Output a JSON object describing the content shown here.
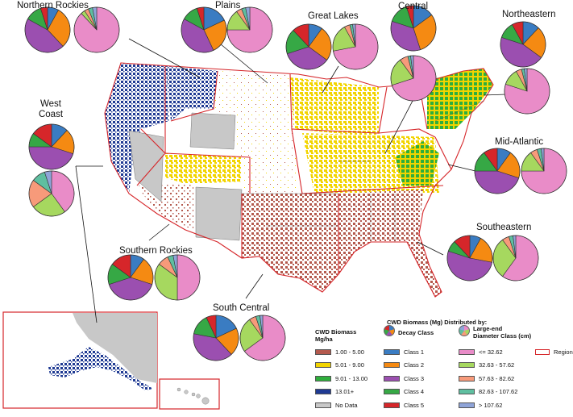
{
  "regions": [
    {
      "id": "northern-rockies",
      "label": "Northern Rockies",
      "decay": [
        8,
        30,
        45,
        12,
        5
      ],
      "diameter": [
        88,
        3,
        3,
        3,
        3
      ]
    },
    {
      "id": "plains",
      "label": "Plains",
      "decay": [
        18,
        25,
        40,
        12,
        5
      ],
      "diameter": [
        75,
        15,
        4,
        3,
        3
      ]
    },
    {
      "id": "great-lakes",
      "label": "Great Lakes",
      "decay": [
        10,
        25,
        35,
        18,
        12
      ],
      "diameter": [
        72,
        20,
        4,
        2,
        2
      ]
    },
    {
      "id": "central",
      "label": "Central",
      "decay": [
        15,
        30,
        35,
        15,
        5
      ],
      "diameter": [
        70,
        20,
        6,
        2,
        2
      ]
    },
    {
      "id": "northeastern",
      "label": "Northeastern",
      "decay": [
        12,
        23,
        45,
        12,
        8
      ],
      "diameter": [
        80,
        12,
        4,
        2,
        2
      ]
    },
    {
      "id": "west-coast",
      "label": "West\nCoast",
      "decay": [
        12,
        18,
        45,
        10,
        15
      ],
      "diameter": [
        40,
        25,
        20,
        10,
        5
      ]
    },
    {
      "id": "mid-atlantic",
      "label": "Mid-Atlantic",
      "decay": [
        10,
        20,
        45,
        15,
        10
      ],
      "diameter": [
        75,
        15,
        5,
        3,
        2
      ]
    },
    {
      "id": "southeastern",
      "label": "Southeastern",
      "decay": [
        8,
        20,
        52,
        8,
        12
      ],
      "diameter": [
        60,
        30,
        5,
        3,
        2
      ]
    },
    {
      "id": "southern-rockies",
      "label": "Southern Rockies",
      "decay": [
        10,
        20,
        40,
        15,
        15
      ],
      "diameter": [
        50,
        35,
        8,
        4,
        3
      ]
    },
    {
      "id": "south-central",
      "label": "South Central",
      "decay": [
        18,
        20,
        40,
        15,
        7
      ],
      "diameter": [
        65,
        25,
        5,
        3,
        2
      ]
    }
  ],
  "legend": {
    "biomass_title": "CWD Biomass\nMg/ha",
    "distributed_title": "CWD Biomass (Mg) Distributed by:",
    "decay_header": "Decay Class",
    "diameter_header": "Large-end\nDiameter Class (cm)",
    "regions_label": "Regions",
    "biomass_classes": [
      {
        "label": "1.00 - 5.00",
        "color": "#B45A4E"
      },
      {
        "label": "5.01 - 9.00",
        "color": "#F2D400"
      },
      {
        "label": "9.01 - 13.00",
        "color": "#2EAE3C"
      },
      {
        "label": "13.01+",
        "color": "#1F3A93"
      },
      {
        "label": "No Data",
        "color": "#C8C8C8"
      }
    ],
    "decay_classes": [
      {
        "label": "Class 1",
        "color": "#3A7CC2"
      },
      {
        "label": "Class 2",
        "color": "#F58A12"
      },
      {
        "label": "Class 3",
        "color": "#9B4FB0"
      },
      {
        "label": "Class 4",
        "color": "#36A845"
      },
      {
        "label": "Class 5",
        "color": "#D6262A"
      }
    ],
    "diameter_classes": [
      {
        "label": "<= 32.62",
        "color": "#E98CC8"
      },
      {
        "label": "32.63 - 57.62",
        "color": "#A6D85F"
      },
      {
        "label": "57.63 - 82.62",
        "color": "#F79A7A"
      },
      {
        "label": "82.63 - 107.62",
        "color": "#5FBFA0"
      },
      {
        "label": "> 107.62",
        "color": "#8FA4D8"
      }
    ]
  },
  "colors": {
    "region_border": "#D6262A",
    "no_data": "#C8C8C8"
  }
}
